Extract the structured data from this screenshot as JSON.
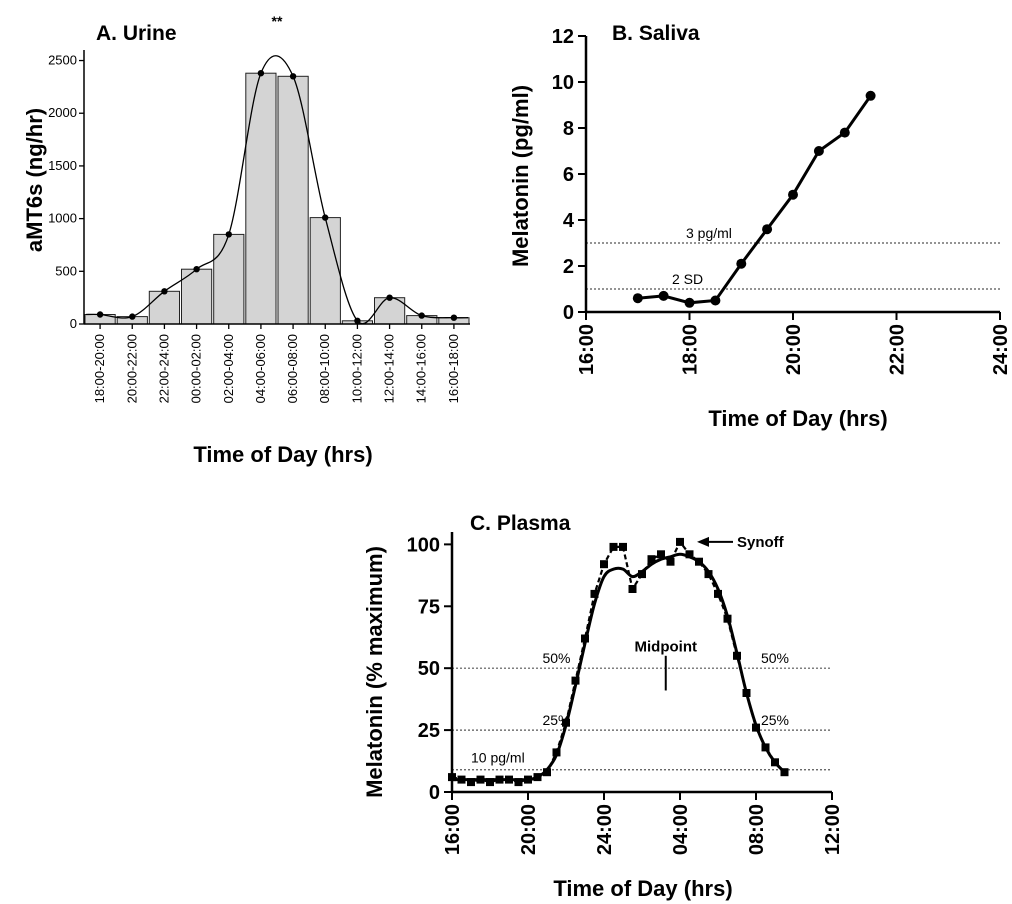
{
  "chart_data": [
    {
      "id": "urine",
      "type": "bar",
      "title": "A. Urine",
      "xlabel": "Time of Day (hrs)",
      "ylabel": "aMT6s (ng/hr)",
      "ylim": [
        0,
        2600
      ],
      "yticks": [
        0,
        500,
        1000,
        1500,
        2000,
        2500
      ],
      "categories": [
        "18:00-20:00",
        "20:00-22:00",
        "22:00-24:00",
        "00:00-02:00",
        "02:00-04:00",
        "04:00-06:00",
        "06:00-08:00",
        "08:00-10:00",
        "10:00-12:00",
        "12:00-14:00",
        "14:00-16:00",
        "16:00-18:00"
      ],
      "values": [
        90,
        70,
        310,
        520,
        850,
        2380,
        2350,
        1010,
        30,
        250,
        80,
        60
      ],
      "annotations": [
        {
          "text": "**",
          "category": "06:00-08:00"
        }
      ],
      "grid": false
    },
    {
      "id": "saliva",
      "type": "line",
      "title": "B. Saliva",
      "xlabel": "Time of Day (hrs)",
      "ylabel": "Melatonin (pg/ml)",
      "xlim": [
        "16:00",
        "24:00"
      ],
      "xticks": [
        "16:00",
        "18:00",
        "20:00",
        "22:00",
        "24:00"
      ],
      "ylim": [
        0,
        12
      ],
      "yticks": [
        0,
        2,
        4,
        6,
        8,
        10,
        12
      ],
      "series": [
        {
          "x": [
            "17:00",
            "17:30",
            "18:00",
            "18:30",
            "19:00",
            "19:30",
            "20:00",
            "20:30",
            "21:00",
            "21:30"
          ],
          "y": [
            0.6,
            0.7,
            0.4,
            0.5,
            2.1,
            3.6,
            5.1,
            7.0,
            7.8,
            9.4
          ]
        }
      ],
      "reference_lines": [
        {
          "y": 3.0,
          "label": "3 pg/ml"
        },
        {
          "y": 1.0,
          "label": "2 SD"
        }
      ],
      "grid": false
    },
    {
      "id": "plasma",
      "type": "line",
      "title": "C. Plasma",
      "xlabel": "Time of Day (hrs)",
      "ylabel": "Melatonin (% maximum)",
      "xlim": [
        "16:00",
        "12:00"
      ],
      "xticks": [
        "16:00",
        "20:00",
        "24:00",
        "04:00",
        "08:00",
        "12:00"
      ],
      "ylim": [
        0,
        105
      ],
      "yticks": [
        0,
        25,
        50,
        75,
        100
      ],
      "series": [
        {
          "style": "squares-dashed",
          "x": [
            "16:00",
            "16:30",
            "17:00",
            "17:30",
            "18:00",
            "18:30",
            "19:00",
            "19:30",
            "20:00",
            "20:30",
            "21:00",
            "21:30",
            "22:00",
            "22:30",
            "23:00",
            "23:30",
            "24:00",
            "00:30",
            "01:00",
            "01:30",
            "02:00",
            "02:30",
            "03:00",
            "03:30",
            "04:00",
            "04:30",
            "05:00",
            "05:30",
            "06:00",
            "06:30",
            "07:00",
            "07:30",
            "08:00",
            "08:30",
            "09:00",
            "09:30"
          ],
          "y": [
            6,
            5,
            4,
            5,
            4,
            5,
            5,
            4,
            5,
            6,
            8,
            16,
            28,
            45,
            62,
            80,
            92,
            99,
            99,
            82,
            88,
            94,
            96,
            93,
            101,
            96,
            93,
            88,
            80,
            70,
            55,
            40,
            26,
            18,
            12,
            8
          ]
        },
        {
          "style": "smooth-solid",
          "x": [
            "16:00",
            "17:00",
            "18:00",
            "19:00",
            "20:00",
            "20:30",
            "21:00",
            "21:30",
            "22:00",
            "22:30",
            "23:00",
            "23:30",
            "24:00",
            "00:30",
            "01:00",
            "01:30",
            "02:00",
            "02:30",
            "03:00",
            "03:30",
            "04:00",
            "04:30",
            "05:00",
            "05:30",
            "06:00",
            "06:30",
            "07:00",
            "07:30",
            "08:00",
            "08:30",
            "09:00",
            "09:30"
          ],
          "y": [
            5,
            5,
            5,
            5,
            5,
            6,
            9,
            15,
            27,
            43,
            60,
            76,
            87,
            90,
            90,
            87,
            89,
            92,
            94,
            95,
            96,
            95,
            93,
            89,
            82,
            71,
            56,
            40,
            27,
            18,
            12,
            8
          ]
        }
      ],
      "reference_lines": [
        {
          "y": 50,
          "labels": [
            "50%",
            "50%"
          ]
        },
        {
          "y": 25,
          "labels": [
            "25%",
            "25%"
          ]
        },
        {
          "y": 9,
          "labels": [
            "10 pg/ml"
          ]
        }
      ],
      "annotations": [
        {
          "text": "Midpoint",
          "x": "03:15",
          "y": 60
        },
        {
          "text": "Synoff",
          "x": "05:00",
          "y": 101
        }
      ],
      "grid": false
    }
  ]
}
